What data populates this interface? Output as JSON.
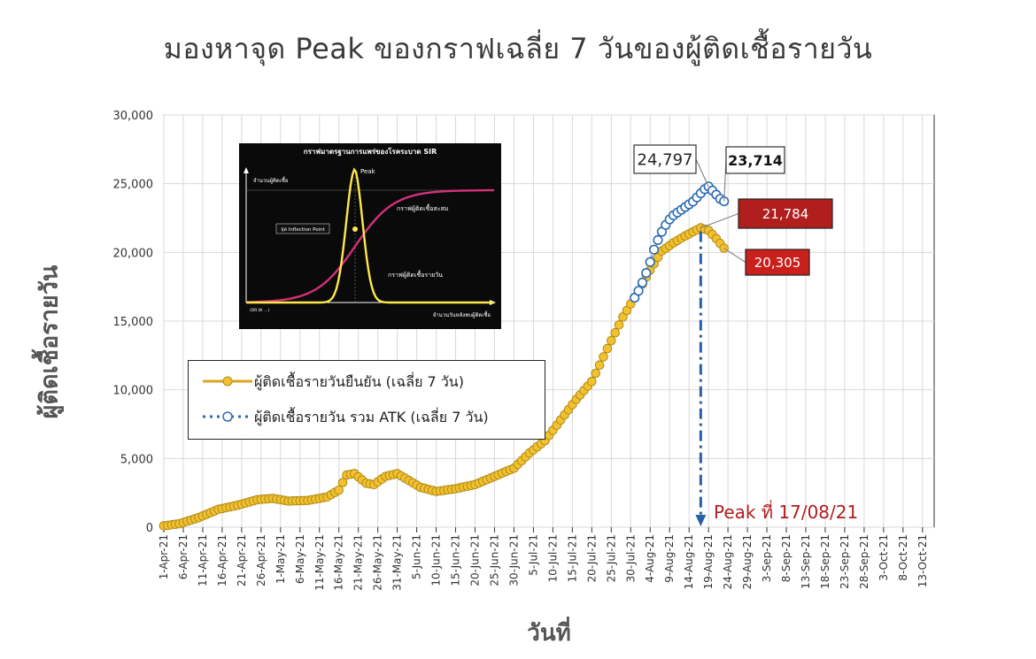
{
  "title": "มองหาจุด Peak ของกราฟเฉลี่ย 7 วันของผู้ติดเชื้อรายวัน",
  "chart_data": {
    "type": "line",
    "title": "มองหาจุด Peak ของกราฟเฉลี่ย 7 วันของผู้ติดเชื้อรายวัน",
    "xlabel": "วันที่",
    "ylabel": "ผู้ติดเชื้อรายวัน",
    "ylim": [
      0,
      30000
    ],
    "yticks": [
      0,
      5000,
      10000,
      15000,
      20000,
      25000,
      30000
    ],
    "ytick_labels": [
      "0",
      "5,000",
      "10,000",
      "15,000",
      "20,000",
      "25,000",
      "30,000"
    ],
    "x_start": "2021-04-01",
    "x_end": "2021-10-16",
    "xtick_labels": [
      "1-Apr-21",
      "6-Apr-21",
      "11-Apr-21",
      "16-Apr-21",
      "21-Apr-21",
      "26-Apr-21",
      "1-May-21",
      "6-May-21",
      "11-May-21",
      "16-May-21",
      "21-May-21",
      "26-May-21",
      "31-May-21",
      "5-Jun-21",
      "10-Jun-21",
      "15-Jun-21",
      "20-Jun-21",
      "25-Jun-21",
      "30-Jun-21",
      "5-Jul-21",
      "10-Jul-21",
      "15-Jul-21",
      "20-Jul-21",
      "25-Jul-21",
      "30-Jul-21",
      "4-Aug-21",
      "9-Aug-21",
      "14-Aug-21",
      "19-Aug-21",
      "24-Aug-21",
      "29-Aug-21",
      "3-Sep-21",
      "8-Sep-21",
      "13-Sep-21",
      "18-Sep-21",
      "23-Sep-21",
      "28-Sep-21",
      "3-Oct-21",
      "8-Oct-21",
      "13-Oct-21"
    ],
    "grid": true,
    "legend_position": "lower-left",
    "series": [
      {
        "name": "ผู้ติดเชื้อรายวันยืนยัน (เฉลี่ย 7 วัน)",
        "color": "#f2c12e",
        "stroke": "#b08a18",
        "x": [
          "2021-04-01",
          "2021-04-05",
          "2021-04-10",
          "2021-04-15",
          "2021-04-20",
          "2021-04-25",
          "2021-04-29",
          "2021-05-03",
          "2021-05-08",
          "2021-05-13",
          "2021-05-16",
          "2021-05-18",
          "2021-05-20",
          "2021-05-23",
          "2021-05-25",
          "2021-05-28",
          "2021-05-31",
          "2021-06-03",
          "2021-06-06",
          "2021-06-10",
          "2021-06-15",
          "2021-06-20",
          "2021-06-25",
          "2021-06-30",
          "2021-07-04",
          "2021-07-08",
          "2021-07-12",
          "2021-07-16",
          "2021-07-20",
          "2021-07-24",
          "2021-07-28",
          "2021-08-01",
          "2021-08-04",
          "2021-08-07",
          "2021-08-10",
          "2021-08-13",
          "2021-08-15",
          "2021-08-17",
          "2021-08-19",
          "2021-08-21",
          "2021-08-23"
        ],
        "values": [
          100,
          250,
          700,
          1300,
          1600,
          2000,
          2100,
          1900,
          1950,
          2200,
          2700,
          3800,
          3900,
          3200,
          3100,
          3700,
          3900,
          3400,
          2900,
          2600,
          2800,
          3100,
          3700,
          4300,
          5400,
          6300,
          7800,
          9300,
          10600,
          13000,
          15300,
          17200,
          18700,
          20100,
          20700,
          21200,
          21500,
          21784,
          21600,
          21000,
          20305
        ]
      },
      {
        "name": "ผู้ติดเชื้อรายวัน รวม ATK (เฉลี่ย 7 วัน)",
        "color": "#ffffff",
        "stroke": "#2b6ab3",
        "x": [
          "2021-07-31",
          "2021-08-01",
          "2021-08-02",
          "2021-08-03",
          "2021-08-04",
          "2021-08-05",
          "2021-08-06",
          "2021-08-07",
          "2021-08-08",
          "2021-08-09",
          "2021-08-10",
          "2021-08-11",
          "2021-08-12",
          "2021-08-13",
          "2021-08-14",
          "2021-08-15",
          "2021-08-16",
          "2021-08-17",
          "2021-08-18",
          "2021-08-19",
          "2021-08-20",
          "2021-08-21",
          "2021-08-22",
          "2021-08-23"
        ],
        "values": [
          16700,
          17200,
          17800,
          18500,
          19300,
          20200,
          20900,
          21500,
          22000,
          22400,
          22700,
          22900,
          23100,
          23300,
          23500,
          23700,
          24000,
          24300,
          24600,
          24797,
          24500,
          24200,
          23900,
          23714
        ]
      }
    ],
    "annotations": [
      {
        "label": "24,797",
        "date": "2021-08-19",
        "value": 24797
      },
      {
        "label": "23,714",
        "date": "2021-08-23",
        "value": 23714
      },
      {
        "label": "21,784",
        "date": "2021-08-17",
        "value": 21784
      },
      {
        "label": "20,305",
        "date": "2021-08-23",
        "value": 20305
      },
      {
        "label": "Peak ที่ 17/08/21",
        "date": "2021-08-17",
        "value": 0
      }
    ]
  },
  "legend": {
    "items": [
      {
        "label": "ผู้ติดเชื้อรายวันยืนยัน (เฉลี่ย 7 วัน)"
      },
      {
        "label": "ผู้ติดเชื้อรายวัน รวม ATK (เฉลี่ย 7 วัน)"
      }
    ]
  },
  "inset": {
    "title": "กราฟมาตรฐานการแพร่ของโรคระบาด SIR",
    "y_axis_label": "จำนวนผู้ติดเชื้อ",
    "x_axis_label": "จำนวนวันหลังพบผู้ติดเชื้อ",
    "peak_label": "Peak",
    "cumulative_label": "กราฟผู้ติดเชื้อสะสม",
    "daily_label": "กราฟผู้ติดเชื้อรายวัน",
    "inflection_label": "จุด Inflection Point",
    "credit": "(DR.W. ...)",
    "colors": {
      "cumulative": "#d4307a",
      "daily": "#ffe84a"
    }
  },
  "peak_annotation": "Peak ที่ 17/08/21"
}
